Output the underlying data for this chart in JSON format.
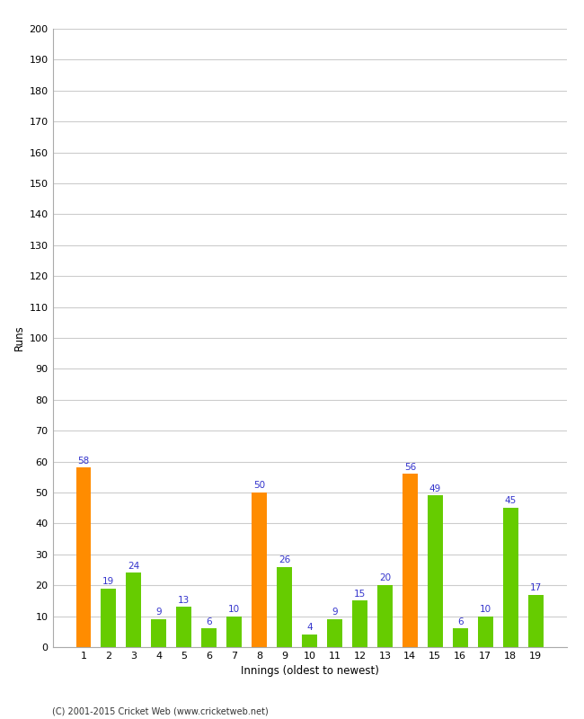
{
  "values": [
    58,
    19,
    24,
    9,
    13,
    6,
    10,
    50,
    26,
    4,
    9,
    15,
    20,
    56,
    49,
    6,
    10,
    45,
    17
  ],
  "colors": [
    "#ff8c00",
    "#66cc00",
    "#66cc00",
    "#66cc00",
    "#66cc00",
    "#66cc00",
    "#66cc00",
    "#ff8c00",
    "#66cc00",
    "#66cc00",
    "#66cc00",
    "#66cc00",
    "#66cc00",
    "#ff8c00",
    "#66cc00",
    "#66cc00",
    "#66cc00",
    "#66cc00",
    "#66cc00"
  ],
  "labels": [
    "1",
    "2",
    "3",
    "4",
    "5",
    "6",
    "7",
    "8",
    "9",
    "10",
    "11",
    "12",
    "13",
    "14",
    "15",
    "16",
    "17",
    "18",
    "19"
  ],
  "xlabel": "Innings (oldest to newest)",
  "ylabel": "Runs",
  "ylim": [
    0,
    200
  ],
  "yticks": [
    0,
    10,
    20,
    30,
    40,
    50,
    60,
    70,
    80,
    90,
    100,
    110,
    120,
    130,
    140,
    150,
    160,
    170,
    180,
    190,
    200
  ],
  "label_color": "#3333cc",
  "footer": "(C) 2001-2015 Cricket Web (www.cricketweb.net)",
  "background_color": "#ffffff",
  "grid_color": "#cccccc",
  "bar_width": 0.6
}
